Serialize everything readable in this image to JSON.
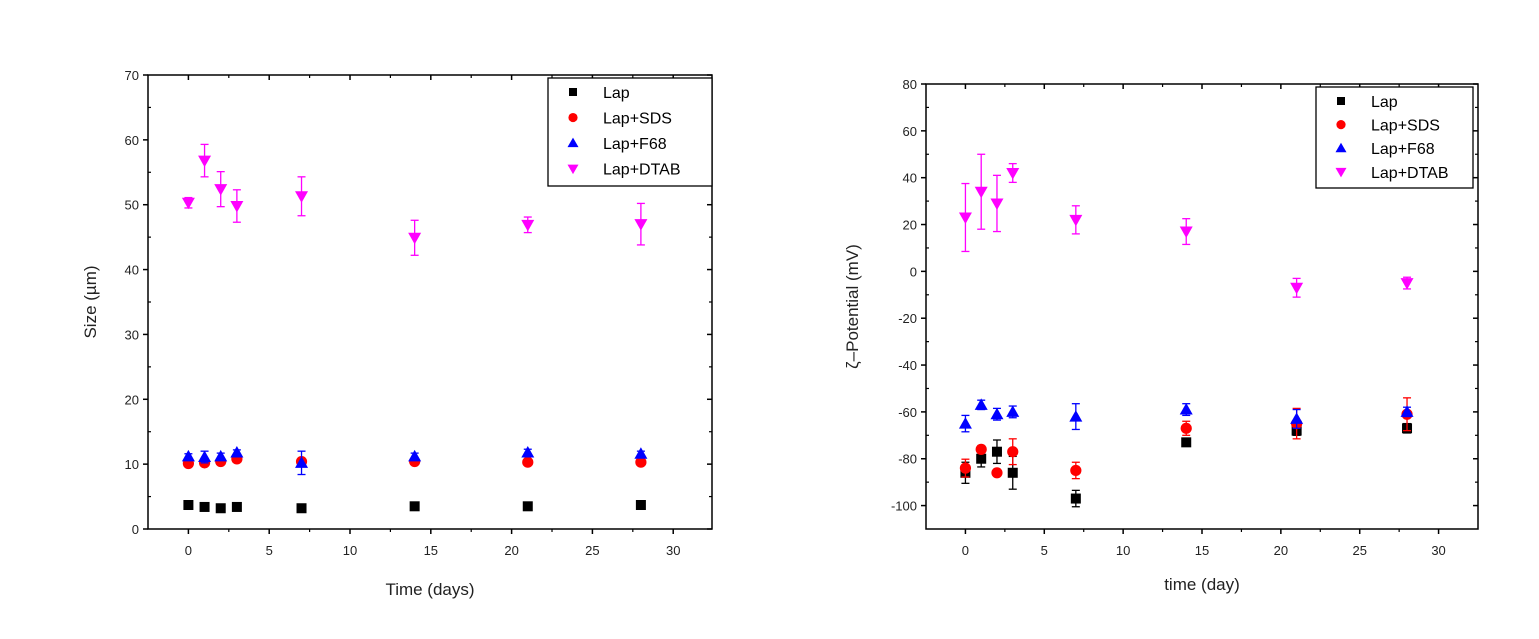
{
  "chart_data": [
    {
      "type": "scatter",
      "title": "",
      "xlabel": "Time (days)",
      "ylabel": "Size (µm)",
      "xlim": [
        -2.5,
        32.4
      ],
      "ylim": [
        0,
        70
      ],
      "xticks": [
        0,
        5,
        10,
        15,
        20,
        25,
        30
      ],
      "yticks": [
        0,
        10,
        20,
        30,
        40,
        50,
        60,
        70
      ],
      "grid": false,
      "legend_position": "top-right",
      "x": [
        0,
        1,
        2,
        3,
        7,
        14,
        21,
        28
      ],
      "series": [
        {
          "name": "Lap",
          "marker": "square",
          "color": "#000000",
          "values": [
            3.7,
            3.4,
            3.2,
            3.4,
            3.2,
            3.5,
            3.5,
            3.7
          ],
          "errors": [
            0.2,
            0.2,
            0.2,
            0.2,
            0.2,
            0.2,
            0.2,
            0.2
          ]
        },
        {
          "name": "Lap+SDS",
          "marker": "circle",
          "color": "#ff0000",
          "values": [
            10.1,
            10.2,
            10.4,
            10.8,
            10.4,
            10.4,
            10.3,
            10.3
          ],
          "errors": [
            0.3,
            0.3,
            0.3,
            0.3,
            0.4,
            0.3,
            0.3,
            0.3
          ]
        },
        {
          "name": "Lap+F68",
          "marker": "triangle-up",
          "color": "#0000ff",
          "values": [
            11.2,
            11.1,
            11.2,
            11.8,
            10.2,
            11.2,
            11.8,
            11.6
          ],
          "errors": [
            0.4,
            0.9,
            0.5,
            0.4,
            1.8,
            0.5,
            0.5,
            0.4
          ]
        },
        {
          "name": "Lap+DTAB",
          "marker": "triangle-down",
          "color": "#ff00ff",
          "values": [
            50.3,
            56.8,
            52.4,
            49.8,
            51.3,
            44.9,
            46.9,
            47.0
          ],
          "errors": [
            0.8,
            2.5,
            2.7,
            2.5,
            3.0,
            2.7,
            1.2,
            3.2
          ]
        }
      ]
    },
    {
      "type": "scatter",
      "title": "",
      "xlabel": "time (day)",
      "ylabel": "ζ–Potential (mV)",
      "xlim": [
        -2.5,
        32.5
      ],
      "ylim": [
        -110,
        80
      ],
      "xticks": [
        0,
        5,
        10,
        15,
        20,
        25,
        30
      ],
      "yticks": [
        -100,
        -80,
        -60,
        -40,
        -20,
        0,
        20,
        40,
        60,
        80
      ],
      "grid": false,
      "legend_position": "top-right",
      "x": [
        0,
        1,
        2,
        3,
        7,
        14,
        21,
        28
      ],
      "series": [
        {
          "name": "Lap",
          "marker": "square",
          "color": "#000000",
          "values": [
            -86,
            -80,
            -77,
            -86,
            -97,
            -73,
            -68,
            -67
          ],
          "errors": [
            4.5,
            3.5,
            5,
            7,
            3.5,
            1.5,
            2,
            2
          ]
        },
        {
          "name": "Lap+SDS",
          "marker": "circle",
          "color": "#ff0000",
          "values": [
            -84,
            -76,
            -86,
            -77,
            -85,
            -67,
            -65,
            -61
          ],
          "errors": [
            3.8,
            1.5,
            1,
            5.5,
            3.5,
            3,
            6.5,
            7
          ]
        },
        {
          "name": "Lap+F68",
          "marker": "triangle-up",
          "color": "#0000ff",
          "values": [
            -65,
            -57,
            -61,
            -60,
            -62,
            -59,
            -63,
            -60
          ],
          "errors": [
            3.5,
            2,
            2.5,
            2.5,
            5.5,
            2.5,
            4,
            2
          ]
        },
        {
          "name": "Lap+DTAB",
          "marker": "triangle-down",
          "color": "#ff00ff",
          "values": [
            23,
            34,
            29,
            42,
            22,
            17,
            -7,
            -5
          ],
          "errors": [
            14.5,
            16,
            12,
            4,
            6,
            5.5,
            4,
            2.5
          ]
        }
      ]
    }
  ]
}
